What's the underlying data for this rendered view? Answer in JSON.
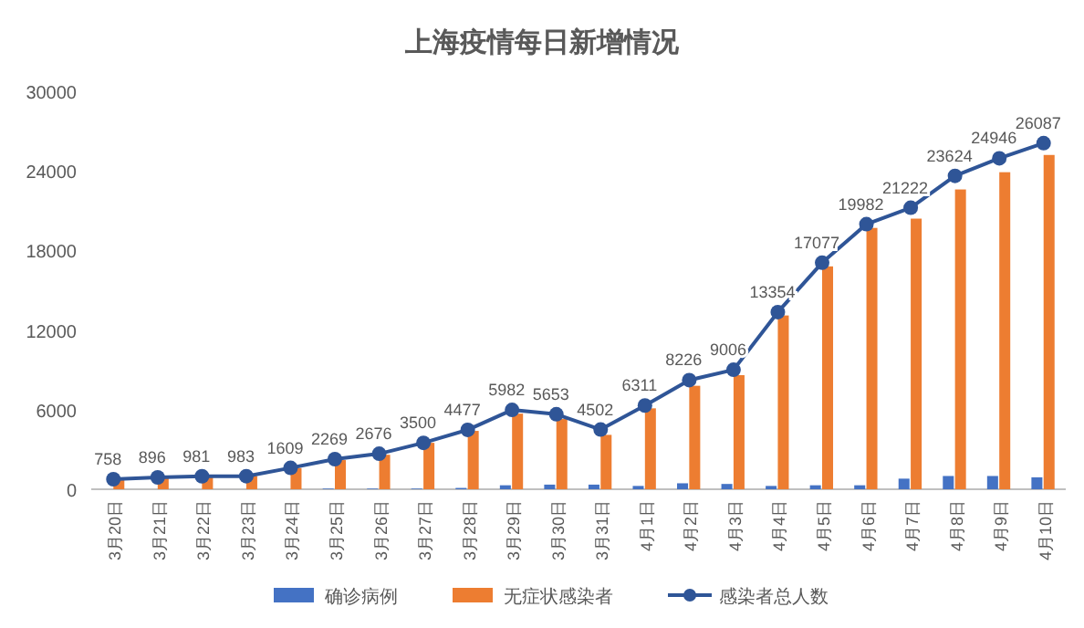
{
  "chart_data": {
    "type": "bar",
    "title": "上海疫情每日新增情况",
    "categories": [
      "3月20日",
      "3月21日",
      "3月22日",
      "3月23日",
      "3月24日",
      "3月25日",
      "3月26日",
      "3月27日",
      "3月28日",
      "3月29日",
      "3月30日",
      "3月31日",
      "4月1日",
      "4月2日",
      "4月3日",
      "4月4日",
      "4月5日",
      "4月6日",
      "4月7日",
      "4月8日",
      "4月9日",
      "4月10日"
    ],
    "ylim": [
      0,
      30000
    ],
    "yticks": [
      0,
      6000,
      12000,
      18000,
      24000,
      30000
    ],
    "grid": false,
    "legend": "bottom",
    "series": [
      {
        "name": "确诊病例",
        "color": "#4472c4",
        "values": [
          0,
          0,
          0,
          0,
          0,
          50,
          50,
          50,
          100,
          300,
          350,
          350,
          250,
          450,
          400,
          250,
          300,
          300,
          800,
          1000,
          1000,
          900
        ]
      },
      {
        "name": "无症状感染者",
        "color": "#ed7d31",
        "values": [
          700,
          900,
          1000,
          1000,
          1600,
          2200,
          2600,
          3500,
          4400,
          5700,
          5300,
          4100,
          6100,
          7800,
          8600,
          13100,
          16800,
          19700,
          20400,
          22600,
          23900,
          25200
        ]
      },
      {
        "name": "感染者总人数",
        "color": "#2f5597",
        "type": "line",
        "marker": "circle",
        "data_labels": true,
        "values": [
          758,
          896,
          981,
          983,
          1609,
          2269,
          2676,
          3500,
          4477,
          5982,
          5653,
          4502,
          6311,
          8226,
          9006,
          13354,
          17077,
          19982,
          21222,
          23624,
          24946,
          26087
        ]
      }
    ]
  }
}
